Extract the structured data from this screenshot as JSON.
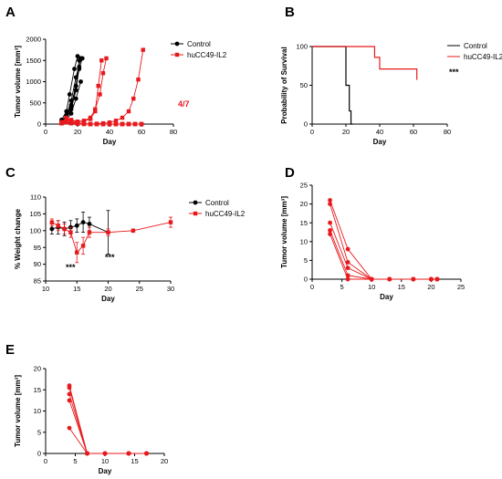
{
  "colors": {
    "control": "#000000",
    "treatment": "#e8191d"
  },
  "chart_data": [
    {
      "panel": "A",
      "type": "line",
      "xlabel": "Day",
      "ylabel": "Tumor volume [mm³]",
      "xlim": [
        0,
        80
      ],
      "ylim": [
        0,
        2000
      ],
      "xticks": [
        "0",
        "20",
        "40",
        "60",
        "80"
      ],
      "yticks": [
        "0",
        "500",
        "1000",
        "1500",
        "2000"
      ],
      "legend": {
        "position": "top-right",
        "entries": [
          "Control",
          "huCC49-IL2"
        ]
      },
      "annotations": [
        "4/7"
      ],
      "series": [
        {
          "name": "Control",
          "group": "control",
          "marker": "circle",
          "x": [
            10,
            13,
            16,
            19,
            21
          ],
          "y": [
            60,
            150,
            400,
            900,
            1500
          ]
        },
        {
          "name": "Control",
          "group": "control",
          "marker": "circle",
          "x": [
            10,
            13,
            16,
            19,
            22
          ],
          "y": [
            80,
            200,
            550,
            1100,
            1550
          ]
        },
        {
          "name": "Control",
          "group": "control",
          "marker": "circle",
          "x": [
            10,
            13,
            15,
            18,
            20
          ],
          "y": [
            100,
            300,
            700,
            1300,
            1600
          ]
        },
        {
          "name": "Control",
          "group": "control",
          "marker": "circle",
          "x": [
            10,
            13,
            16,
            19,
            21
          ],
          "y": [
            50,
            120,
            350,
            800,
            1350
          ]
        },
        {
          "name": "Control",
          "group": "control",
          "marker": "circle",
          "x": [
            10,
            13,
            16,
            19,
            21,
            23
          ],
          "y": [
            70,
            180,
            450,
            900,
            1300,
            1550
          ]
        },
        {
          "name": "Control",
          "group": "control",
          "marker": "circle",
          "x": [
            10,
            13,
            16,
            19,
            22
          ],
          "y": [
            40,
            100,
            250,
            600,
            1000
          ]
        },
        {
          "name": "huCC49-IL2",
          "group": "treatment",
          "marker": "square",
          "x": [
            10,
            13,
            16,
            20,
            24,
            28,
            31,
            34,
            36,
            38
          ],
          "y": [
            50,
            150,
            100,
            60,
            80,
            150,
            350,
            700,
            1200,
            1550
          ]
        },
        {
          "name": "huCC49-IL2",
          "group": "treatment",
          "marker": "square",
          "x": [
            10,
            13,
            16,
            20,
            24,
            28,
            31,
            33,
            35
          ],
          "y": [
            40,
            120,
            90,
            50,
            70,
            120,
            300,
            900,
            1500
          ]
        },
        {
          "name": "huCC49-IL2",
          "group": "treatment",
          "marker": "square",
          "x": [
            10,
            13,
            16,
            20,
            24,
            28,
            32,
            36,
            40,
            44,
            48,
            52,
            55,
            58,
            61
          ],
          "y": [
            40,
            100,
            60,
            30,
            10,
            0,
            10,
            20,
            40,
            80,
            150,
            300,
            600,
            1050,
            1750
          ]
        },
        {
          "name": "huCC49-IL2",
          "group": "treatment",
          "marker": "square",
          "x": [
            10,
            13,
            16,
            20,
            24,
            28,
            32,
            36,
            40,
            44,
            48,
            52,
            56,
            60
          ],
          "y": [
            30,
            80,
            40,
            20,
            10,
            0,
            0,
            0,
            0,
            0,
            0,
            0,
            0,
            0
          ]
        },
        {
          "name": "huCC49-IL2",
          "group": "treatment",
          "marker": "square",
          "x": [
            10,
            13,
            16,
            20,
            24,
            28,
            32,
            36,
            40,
            44,
            48,
            52,
            56,
            60
          ],
          "y": [
            20,
            60,
            30,
            15,
            5,
            0,
            0,
            0,
            0,
            0,
            0,
            0,
            0,
            0
          ]
        },
        {
          "name": "huCC49-IL2",
          "group": "treatment",
          "marker": "square",
          "x": [
            10,
            13,
            16,
            20,
            24,
            28,
            32,
            36,
            40,
            44,
            48,
            52,
            56,
            60
          ],
          "y": [
            25,
            50,
            20,
            10,
            0,
            0,
            0,
            0,
            0,
            0,
            0,
            0,
            0,
            0
          ]
        },
        {
          "name": "huCC49-IL2",
          "group": "treatment",
          "marker": "square",
          "x": [
            10,
            13,
            16,
            20,
            24,
            28,
            32,
            36,
            40,
            44,
            48,
            52,
            56,
            60
          ],
          "y": [
            15,
            40,
            15,
            5,
            0,
            0,
            0,
            0,
            0,
            0,
            0,
            0,
            0,
            0
          ]
        }
      ]
    },
    {
      "panel": "B",
      "type": "line",
      "xlabel": "Day",
      "ylabel": "Probability of Survival",
      "xlim": [
        0,
        80
      ],
      "ylim": [
        0,
        100
      ],
      "xticks": [
        "0",
        "20",
        "40",
        "60",
        "80"
      ],
      "yticks": [
        "0",
        "50",
        "100"
      ],
      "legend": {
        "position": "top-right",
        "entries": [
          "Control",
          "huCC49-IL2"
        ]
      },
      "annotations": [
        "***"
      ],
      "series": [
        {
          "name": "Control",
          "group": "control",
          "step": true,
          "x": [
            0,
            20,
            22,
            23,
            24
          ],
          "y": [
            100,
            50,
            17,
            0,
            0
          ]
        },
        {
          "name": "huCC49-IL2",
          "group": "treatment",
          "step": true,
          "x": [
            0,
            37,
            40,
            62
          ],
          "y": [
            100,
            86,
            71,
            57
          ]
        }
      ]
    },
    {
      "panel": "C",
      "type": "line",
      "xlabel": "Day",
      "ylabel": "% Weight change",
      "xlim": [
        10,
        30
      ],
      "ylim": [
        85,
        110
      ],
      "xticks": [
        "10",
        "15",
        "20",
        "25",
        "30"
      ],
      "yticks": [
        "85",
        "90",
        "95",
        "100",
        "105",
        "110"
      ],
      "legend": {
        "position": "top-right",
        "entries": [
          "Control",
          "huCC49-IL2"
        ]
      },
      "annotations": [
        "***",
        "***"
      ],
      "series": [
        {
          "name": "Control",
          "group": "control",
          "marker": "circle",
          "x": [
            11,
            12,
            13,
            14,
            15,
            16,
            17,
            20
          ],
          "y": [
            100.5,
            101,
            100.5,
            101,
            101.5,
            102.5,
            102,
            99.5
          ],
          "err": [
            1.5,
            2,
            2,
            2,
            2,
            3,
            2,
            6.5
          ]
        },
        {
          "name": "huCC49-IL2",
          "group": "treatment",
          "marker": "square",
          "x": [
            11,
            12,
            13,
            14,
            15,
            16,
            17,
            20,
            24,
            30
          ],
          "y": [
            102.5,
            101.5,
            100.5,
            99.5,
            93.5,
            95.5,
            99.5,
            99.5,
            100,
            102.5
          ],
          "err": [
            1,
            1.5,
            1.5,
            1.5,
            3,
            2.5,
            1.5,
            1,
            0.5,
            1.5
          ]
        }
      ]
    },
    {
      "panel": "D",
      "type": "line",
      "xlabel": "Day",
      "ylabel": "Tumor volume [mm³]",
      "xlim": [
        0,
        25
      ],
      "ylim": [
        0,
        25
      ],
      "xticks": [
        "0",
        "5",
        "10",
        "15",
        "20",
        "25"
      ],
      "yticks": [
        "0",
        "5",
        "10",
        "15",
        "20",
        "25"
      ],
      "series": [
        {
          "group": "treatment",
          "marker": "circle",
          "x": [
            3,
            6,
            10,
            13,
            17,
            20,
            21
          ],
          "y": [
            21,
            8,
            0,
            0,
            0,
            0,
            0
          ]
        },
        {
          "group": "treatment",
          "marker": "circle",
          "x": [
            3,
            6,
            10,
            13,
            17,
            20,
            21
          ],
          "y": [
            20,
            4.5,
            0,
            0,
            0,
            0,
            0
          ]
        },
        {
          "group": "treatment",
          "marker": "circle",
          "x": [
            3,
            6,
            10,
            13,
            17,
            20,
            21
          ],
          "y": [
            15,
            3,
            0,
            0,
            0,
            0,
            0
          ]
        },
        {
          "group": "treatment",
          "marker": "circle",
          "x": [
            3,
            6,
            10,
            13,
            17,
            20,
            21
          ],
          "y": [
            13,
            1,
            0,
            0,
            0,
            0,
            0
          ]
        },
        {
          "group": "treatment",
          "marker": "circle",
          "x": [
            3,
            6,
            10,
            13,
            17,
            20,
            21
          ],
          "y": [
            12,
            0,
            0,
            0,
            0,
            0,
            0
          ]
        }
      ]
    },
    {
      "panel": "E",
      "type": "line",
      "xlabel": "Day",
      "ylabel": "Tumor volume [mm³]",
      "xlim": [
        0,
        20
      ],
      "ylim": [
        0,
        20
      ],
      "xticks": [
        "0",
        "5",
        "10",
        "15",
        "20"
      ],
      "yticks": [
        "0",
        "5",
        "10",
        "15",
        "20"
      ],
      "series": [
        {
          "group": "treatment",
          "marker": "circle",
          "x": [
            4,
            7,
            10,
            14,
            17
          ],
          "y": [
            16,
            0,
            0,
            0,
            0
          ]
        },
        {
          "group": "treatment",
          "marker": "circle",
          "x": [
            4,
            7,
            10,
            14,
            17
          ],
          "y": [
            15.5,
            0,
            0,
            0,
            0
          ]
        },
        {
          "group": "treatment",
          "marker": "circle",
          "x": [
            4,
            7,
            10,
            14,
            17
          ],
          "y": [
            14,
            0,
            0,
            0,
            0
          ]
        },
        {
          "group": "treatment",
          "marker": "circle",
          "x": [
            4,
            7,
            10,
            14,
            17
          ],
          "y": [
            12.5,
            0,
            0,
            0,
            0
          ]
        },
        {
          "group": "treatment",
          "marker": "circle",
          "x": [
            4,
            7,
            10,
            14,
            17
          ],
          "y": [
            6,
            0,
            0,
            0,
            0
          ]
        }
      ]
    }
  ]
}
